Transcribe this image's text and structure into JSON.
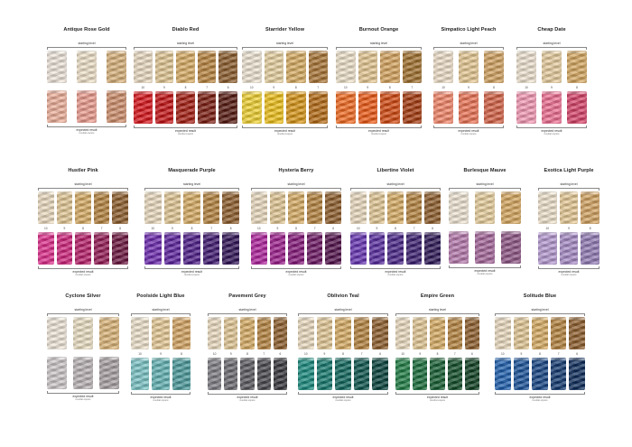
{
  "labels": {
    "starting": "starting level",
    "expected": "expected result",
    "expected_sub": "resultat espere"
  },
  "cards": [
    {
      "title": "Antique Rose Gold",
      "levels": [],
      "start": [
        "#efe6dd",
        "#efe2c9",
        "#d9b27b"
      ],
      "result": [
        "#eeb09b",
        "#ec9c8f",
        "#cf8f6c"
      ]
    },
    {
      "title": "Diablo Red",
      "levels": [
        "10",
        "9",
        "8",
        "7",
        "6"
      ],
      "start": [
        "#ecdcc3",
        "#e2c794",
        "#d9ad64",
        "#b9843f",
        "#8b5c2c"
      ],
      "result": [
        "#d9141b",
        "#c61315",
        "#a51d12",
        "#7c1d11",
        "#561a10"
      ]
    },
    {
      "title": "Starrider Yellow",
      "levels": [
        "10",
        "9",
        "8",
        "7"
      ],
      "start": [
        "#efe5d4",
        "#e8d2a1",
        "#d8ad62",
        "#a97535"
      ],
      "result": [
        "#f1d233",
        "#efc21b",
        "#d89516",
        "#b56b14"
      ]
    },
    {
      "title": "Burnout Orange",
      "levels": [
        "10",
        "9",
        "8",
        "7"
      ],
      "start": [
        "#efe2cb",
        "#e5c893",
        "#d6a45e",
        "#a2712f"
      ],
      "result": [
        "#f36b21",
        "#ee5a15",
        "#d34810",
        "#a63a0f"
      ]
    },
    {
      "title": "Simpatico Light Peach",
      "levels": [
        "10",
        "9",
        "8"
      ],
      "start": [
        "#efe0ca",
        "#e6c994",
        "#d3a361"
      ],
      "result": [
        "#f4866a",
        "#ec7456",
        "#d56246"
      ]
    },
    {
      "title": "Cheap Date",
      "levels": [
        "10",
        "9",
        "8"
      ],
      "start": [
        "#efe4d1",
        "#e8ce9f",
        "#d6a861"
      ],
      "result": [
        "#f59ab5",
        "#ef6f93",
        "#d84369"
      ]
    },
    {
      "title": "Hustler Pink",
      "levels": [
        "10",
        "9",
        "8",
        "7",
        "6"
      ],
      "start": [
        "#ecdcc1",
        "#e3c895",
        "#d8ad64",
        "#b6833f",
        "#8e5e2c"
      ],
      "result": [
        "#df2e8b",
        "#d0247d",
        "#b81e6a",
        "#941a55",
        "#6d1640"
      ]
    },
    {
      "title": "Masquerade Purple",
      "levels": [
        "10",
        "9",
        "8",
        "7",
        "6"
      ],
      "start": [
        "#ecdcc1",
        "#e3c895",
        "#d8ad64",
        "#b6833f",
        "#8e5e2c"
      ],
      "result": [
        "#6d2ab0",
        "#5d24a0",
        "#4f1e8a",
        "#3f1870",
        "#311457"
      ]
    },
    {
      "title": "Hysteria Berry",
      "levels": [
        "10",
        "9",
        "8",
        "7",
        "6"
      ],
      "start": [
        "#ecdcc1",
        "#e3c895",
        "#d8ad64",
        "#b6833f",
        "#8e5e2c"
      ],
      "result": [
        "#b0249e",
        "#9d1e8d",
        "#86197a",
        "#6c1663",
        "#52124c"
      ]
    },
    {
      "title": "Libertine Violet",
      "levels": [
        "10",
        "9",
        "8",
        "7",
        "6"
      ],
      "start": [
        "#ecdcc1",
        "#e3c895",
        "#d8ad64",
        "#b6833f",
        "#8e5e2c"
      ],
      "result": [
        "#6734b3",
        "#582ca0",
        "#4a2689",
        "#3b1f70",
        "#2e1857"
      ]
    },
    {
      "title": "Burlesque Mauve",
      "levels": [],
      "start": [
        "#efe5d4",
        "#e8cf9d",
        "#d6a75f"
      ],
      "result": [
        "#b679ad",
        "#a5669b",
        "#8f5686"
      ]
    },
    {
      "title": "Exotica Light Purple",
      "levels": [
        "10",
        "9",
        "8"
      ],
      "start": [
        "#efe3cd",
        "#e6ca96",
        "#d4a462"
      ],
      "result": [
        "#b69ad1",
        "#a78bc6",
        "#937cb6"
      ]
    },
    {
      "title": "Cyclone Silver",
      "levels": [],
      "start": [
        "#efe6da",
        "#ece0c4",
        "#dcb679"
      ],
      "result": [
        "#cdc7c9",
        "#bbb4b7",
        "#a9a1a4"
      ]
    },
    {
      "title": "Poolside Light Blue",
      "levels": [
        "10",
        "9",
        "8"
      ],
      "start": [
        "#efe3cd",
        "#e6ca96",
        "#d4a462"
      ],
      "result": [
        "#7bc4c6",
        "#63b2b3",
        "#4c9b9c"
      ]
    },
    {
      "title": "Pavement Grey",
      "levels": [
        "10",
        "9",
        "8",
        "7",
        "6"
      ],
      "start": [
        "#ecdcc1",
        "#e3c895",
        "#d8ad64",
        "#b6833f",
        "#8e5e2c"
      ],
      "result": [
        "#7d7d83",
        "#6b6b71",
        "#59595f",
        "#47474d",
        "#35353b"
      ]
    },
    {
      "title": "Oblivion Teal",
      "levels": [
        "10",
        "9",
        "8",
        "7",
        "6"
      ],
      "start": [
        "#ecdcc1",
        "#e3c895",
        "#d8ad64",
        "#b6833f",
        "#8e5e2c"
      ],
      "result": [
        "#1a8a7e",
        "#14786d",
        "#0f665c",
        "#0b544c",
        "#08423b"
      ]
    },
    {
      "title": "Empire Green",
      "levels": [
        "10",
        "9",
        "8",
        "7",
        "6"
      ],
      "start": [
        "#ecdcc1",
        "#e3c895",
        "#d8ad64",
        "#b6833f",
        "#8e5e2c"
      ],
      "result": [
        "#1f7d44",
        "#1a6d3a",
        "#155d31",
        "#114d28",
        "#0d3e20"
      ]
    },
    {
      "title": "Solitude Blue",
      "levels": [
        "10",
        "9",
        "8",
        "7",
        "6"
      ],
      "start": [
        "#ecdcc1",
        "#e3c895",
        "#d8ad64",
        "#b6833f",
        "#8e5e2c"
      ],
      "result": [
        "#1e5fae",
        "#1a529a",
        "#164585",
        "#123970",
        "#0e2d5b"
      ]
    }
  ]
}
